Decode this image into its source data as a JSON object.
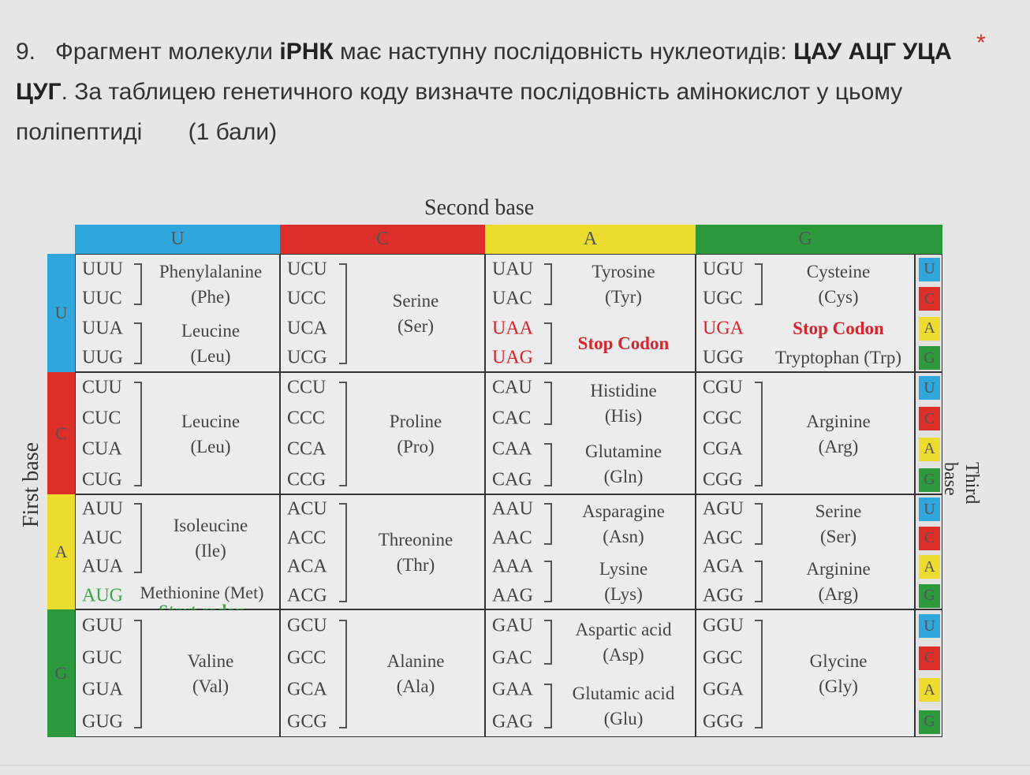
{
  "question": {
    "number": "9.",
    "text_1": "Фрагмент молекули ",
    "bold_1": "іРНК",
    "text_2": " має наступну послідовність нуклеотидів: ",
    "bold_2": "ЦАУ АЦГ УЦА ЦУГ",
    "text_3": ". За таблицею генетичного коду визначте послідовність амінокислот у цьому поліпептиді",
    "points": "(1 бали)",
    "required_mark": "*"
  },
  "table": {
    "title_top": "Second base",
    "title_left": "First base",
    "title_right": "Third base",
    "bases": [
      "U",
      "C",
      "A",
      "G"
    ],
    "base_colors": {
      "U": "#2fa6dc",
      "C": "#dd2f2a",
      "A": "#ecdc2e",
      "G": "#2c9a3c"
    },
    "stop_color": "#d8242c",
    "start_color": "#3aa84a",
    "rows": [
      [
        {
          "codons": [
            "UUU",
            "UUC",
            "UUA",
            "UUG"
          ],
          "groups": [
            {
              "codons": [
                0,
                1
              ],
              "lines": [
                "Phenylalanine",
                "(Phe)"
              ]
            },
            {
              "codons": [
                2,
                3
              ],
              "lines": [
                "Leucine",
                "(Leu)"
              ]
            }
          ]
        },
        {
          "codons": [
            "UCU",
            "UCC",
            "UCA",
            "UCG"
          ],
          "groups": [
            {
              "codons": [
                0,
                1,
                2,
                3
              ],
              "lines": [
                "Serine",
                "(Ser)"
              ]
            }
          ]
        },
        {
          "codons": [
            "UAU",
            "UAC",
            "UAA",
            "UAG"
          ],
          "stop_codons": [
            2,
            3
          ],
          "groups": [
            {
              "codons": [
                0,
                1
              ],
              "lines": [
                "Tyrosine",
                "(Tyr)"
              ]
            },
            {
              "codons": [
                2,
                3
              ],
              "lines": [
                "Stop Codon"
              ],
              "type": "stop"
            }
          ]
        },
        {
          "codons": [
            "UGU",
            "UGC",
            "UGA",
            "UGG"
          ],
          "stop_codons": [
            2
          ],
          "groups": [
            {
              "codons": [
                0,
                1
              ],
              "lines": [
                "Cysteine",
                "(Cys)"
              ]
            },
            {
              "codons": [
                2
              ],
              "lines": [
                "Stop Codon"
              ],
              "type": "stop"
            },
            {
              "codons": [
                3
              ],
              "lines": [
                "Tryptophan (Trp)"
              ]
            }
          ]
        }
      ],
      [
        {
          "codons": [
            "CUU",
            "CUC",
            "CUA",
            "CUG"
          ],
          "groups": [
            {
              "codons": [
                0,
                1,
                2,
                3
              ],
              "lines": [
                "Leucine",
                "(Leu)"
              ]
            }
          ]
        },
        {
          "codons": [
            "CCU",
            "CCC",
            "CCA",
            "CCG"
          ],
          "groups": [
            {
              "codons": [
                0,
                1,
                2,
                3
              ],
              "lines": [
                "Proline",
                "(Pro)"
              ]
            }
          ]
        },
        {
          "codons": [
            "CAU",
            "CAC",
            "CAA",
            "CAG"
          ],
          "groups": [
            {
              "codons": [
                0,
                1
              ],
              "lines": [
                "Histidine",
                "(His)"
              ]
            },
            {
              "codons": [
                2,
                3
              ],
              "lines": [
                "Glutamine",
                "(Gln)"
              ]
            }
          ]
        },
        {
          "codons": [
            "CGU",
            "CGC",
            "CGA",
            "CGG"
          ],
          "groups": [
            {
              "codons": [
                0,
                1,
                2,
                3
              ],
              "lines": [
                "Arginine",
                "(Arg)"
              ]
            }
          ]
        }
      ],
      [
        {
          "codons": [
            "AUU",
            "AUC",
            "AUA",
            "AUG"
          ],
          "start_codons": [
            3
          ],
          "groups": [
            {
              "codons": [
                0,
                1,
                2
              ],
              "lines": [
                "Isoleucine",
                "(Ile)"
              ]
            },
            {
              "codons": [
                3
              ],
              "lines": [
                "Methionine (Met)",
                "Start codon"
              ],
              "type": "start"
            }
          ]
        },
        {
          "codons": [
            "ACU",
            "ACC",
            "ACA",
            "ACG"
          ],
          "groups": [
            {
              "codons": [
                0,
                1,
                2,
                3
              ],
              "lines": [
                "Threonine",
                "(Thr)"
              ]
            }
          ]
        },
        {
          "codons": [
            "AAU",
            "AAC",
            "AAA",
            "AAG"
          ],
          "groups": [
            {
              "codons": [
                0,
                1
              ],
              "lines": [
                "Asparagine",
                "(Asn)"
              ]
            },
            {
              "codons": [
                2,
                3
              ],
              "lines": [
                "Lysine",
                "(Lys)"
              ]
            }
          ]
        },
        {
          "codons": [
            "AGU",
            "AGC",
            "AGA",
            "AGG"
          ],
          "groups": [
            {
              "codons": [
                0,
                1
              ],
              "lines": [
                "Serine",
                "(Ser)"
              ]
            },
            {
              "codons": [
                2,
                3
              ],
              "lines": [
                "Arginine",
                "(Arg)"
              ]
            }
          ]
        }
      ],
      [
        {
          "codons": [
            "GUU",
            "GUC",
            "GUA",
            "GUG"
          ],
          "groups": [
            {
              "codons": [
                0,
                1,
                2,
                3
              ],
              "lines": [
                "Valine",
                "(Val)"
              ]
            }
          ]
        },
        {
          "codons": [
            "GCU",
            "GCC",
            "GCA",
            "GCG"
          ],
          "groups": [
            {
              "codons": [
                0,
                1,
                2,
                3
              ],
              "lines": [
                "Alanine",
                "(Ala)"
              ]
            }
          ]
        },
        {
          "codons": [
            "GAU",
            "GAC",
            "GAA",
            "GAG"
          ],
          "groups": [
            {
              "codons": [
                0,
                1
              ],
              "lines": [
                "Aspartic acid",
                "(Asp)"
              ]
            },
            {
              "codons": [
                2,
                3
              ],
              "lines": [
                "Glutamic acid",
                "(Glu)"
              ]
            }
          ]
        },
        {
          "codons": [
            "GGU",
            "GGC",
            "GGA",
            "GGG"
          ],
          "groups": [
            {
              "codons": [
                0,
                1,
                2,
                3
              ],
              "lines": [
                "Glycine",
                "(Gly)"
              ]
            }
          ]
        }
      ]
    ]
  }
}
